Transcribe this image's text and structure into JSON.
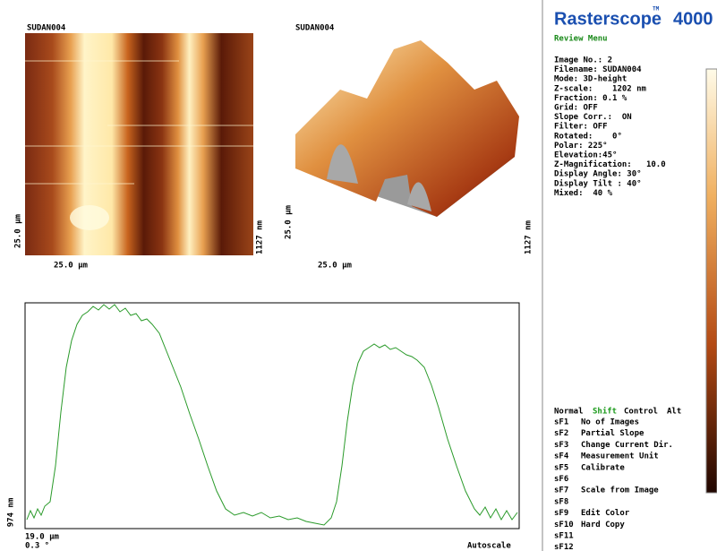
{
  "images": {
    "left_title": "SUDAN004",
    "right_title": "SUDAN004",
    "left_x_label": "25.0 µm",
    "left_y_label": "25.0 µm",
    "left_z_label": "1127 nm",
    "right_x_label": "25.0 µm",
    "right_y_label": "25.0 µm",
    "right_z_label": "1127 nm"
  },
  "profile": {
    "y_label": "974 nm",
    "x_label": "19.0 µm",
    "angle": "0.3 °",
    "mode": "Autoscale"
  },
  "brand": {
    "name": "Rasterscope",
    "tm": "TM",
    "model": "4000",
    "subtitle": "Review Menu"
  },
  "info": [
    "Image No.: 2",
    "Filename: SUDAN004",
    "Mode: 3D-height",
    "Z-scale:    1202 nm",
    "Fraction: 0.1 %",
    "Grid: OFF",
    "Slope Corr.:  ON",
    "Filter: OFF",
    "Rotated:    0°",
    "Polar: 225°",
    "Elevation:45°",
    "Z-Magnification:   10.0",
    "Display Angle: 30°",
    "Display Tilt : 40°",
    "Mixed:  40 %"
  ],
  "menu": {
    "header": [
      "Normal",
      "Shift",
      "Control",
      "Alt"
    ],
    "items": [
      [
        "sF1",
        "No of Images"
      ],
      [
        "sF2",
        "Partial Slope"
      ],
      [
        "sF3",
        "Change Current Dir."
      ],
      [
        "sF4",
        "Measurement Unit"
      ],
      [
        "sF5",
        "Calibrate"
      ],
      [
        "sF6",
        ""
      ],
      [
        "sF7",
        "Scale from Image"
      ],
      [
        "sF8",
        ""
      ],
      [
        "sF9",
        "Edit Color"
      ],
      [
        "sF10",
        "Hard Copy"
      ],
      [
        "sF11",
        ""
      ],
      [
        "sF12",
        ""
      ]
    ]
  }
}
